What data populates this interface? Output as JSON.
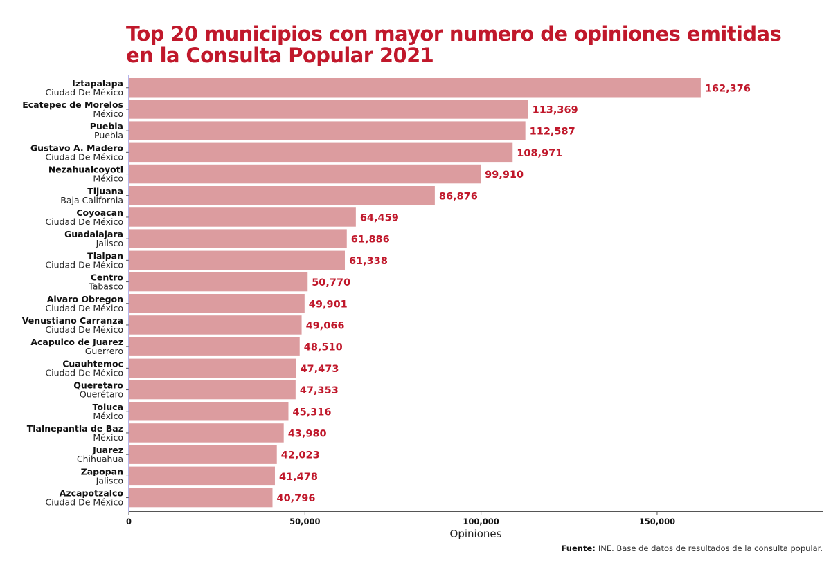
{
  "chart_data": {
    "type": "bar",
    "orientation": "horizontal",
    "title": "Top 20 municipios con mayor numero de opiniones emitidas en la Consulta Popular 2021",
    "title_lines": [
      "Top 20 municipios con mayor numero de opiniones emitidas",
      "en la Consulta Popular 2021"
    ],
    "xlabel": "Opiniones",
    "ylabel": "",
    "xlim": [
      0,
      197000
    ],
    "x_ticks": [
      0,
      50000,
      100000,
      150000
    ],
    "x_tick_labels": [
      "0",
      "50,000",
      "100,000",
      "150,000"
    ],
    "grid": false,
    "legend": "none",
    "bar_color": "#dc9c9f",
    "label_color": "#c0182b",
    "title_color": "#c0182b",
    "categories": [
      {
        "municipio": "Iztapalapa",
        "estado": "Ciudad De México"
      },
      {
        "municipio": "Ecatepec de Morelos",
        "estado": "México"
      },
      {
        "municipio": "Puebla",
        "estado": "Puebla"
      },
      {
        "municipio": "Gustavo A. Madero",
        "estado": "Ciudad De México"
      },
      {
        "municipio": "Nezahualcoyotl",
        "estado": "México"
      },
      {
        "municipio": "Tijuana",
        "estado": "Baja California"
      },
      {
        "municipio": "Coyoacan",
        "estado": "Ciudad De México"
      },
      {
        "municipio": "Guadalajara",
        "estado": "Jalisco"
      },
      {
        "municipio": "Tlalpan",
        "estado": "Ciudad De México"
      },
      {
        "municipio": "Centro",
        "estado": "Tabasco"
      },
      {
        "municipio": "Alvaro Obregon",
        "estado": "Ciudad De México"
      },
      {
        "municipio": "Venustiano Carranza",
        "estado": "Ciudad De México"
      },
      {
        "municipio": "Acapulco de Juarez",
        "estado": "Guerrero"
      },
      {
        "municipio": "Cuauhtemoc",
        "estado": "Ciudad De México"
      },
      {
        "municipio": "Queretaro",
        "estado": "Querétaro"
      },
      {
        "municipio": "Toluca",
        "estado": "México"
      },
      {
        "municipio": "Tlalnepantla de Baz",
        "estado": "México"
      },
      {
        "municipio": "Juarez",
        "estado": "Chihuahua"
      },
      {
        "municipio": "Zapopan",
        "estado": "Jalisco"
      },
      {
        "municipio": "Azcapotzalco",
        "estado": "Ciudad De México"
      }
    ],
    "values": [
      162376,
      113369,
      112587,
      108971,
      99910,
      86876,
      64459,
      61886,
      61338,
      50770,
      49901,
      49066,
      48510,
      47473,
      47353,
      45316,
      43980,
      42023,
      41478,
      40796
    ],
    "value_labels": [
      "162,376",
      "113,369",
      "112,587",
      "108,971",
      "99,910",
      "86,876",
      "64,459",
      "61,886",
      "61,338",
      "50,770",
      "49,901",
      "49,066",
      "48,510",
      "47,473",
      "47,353",
      "45,316",
      "43,980",
      "42,023",
      "41,478",
      "40,796"
    ]
  },
  "source": {
    "label": "Fuente:",
    "text": "INE. Base de datos de resultados de la consulta popular."
  }
}
